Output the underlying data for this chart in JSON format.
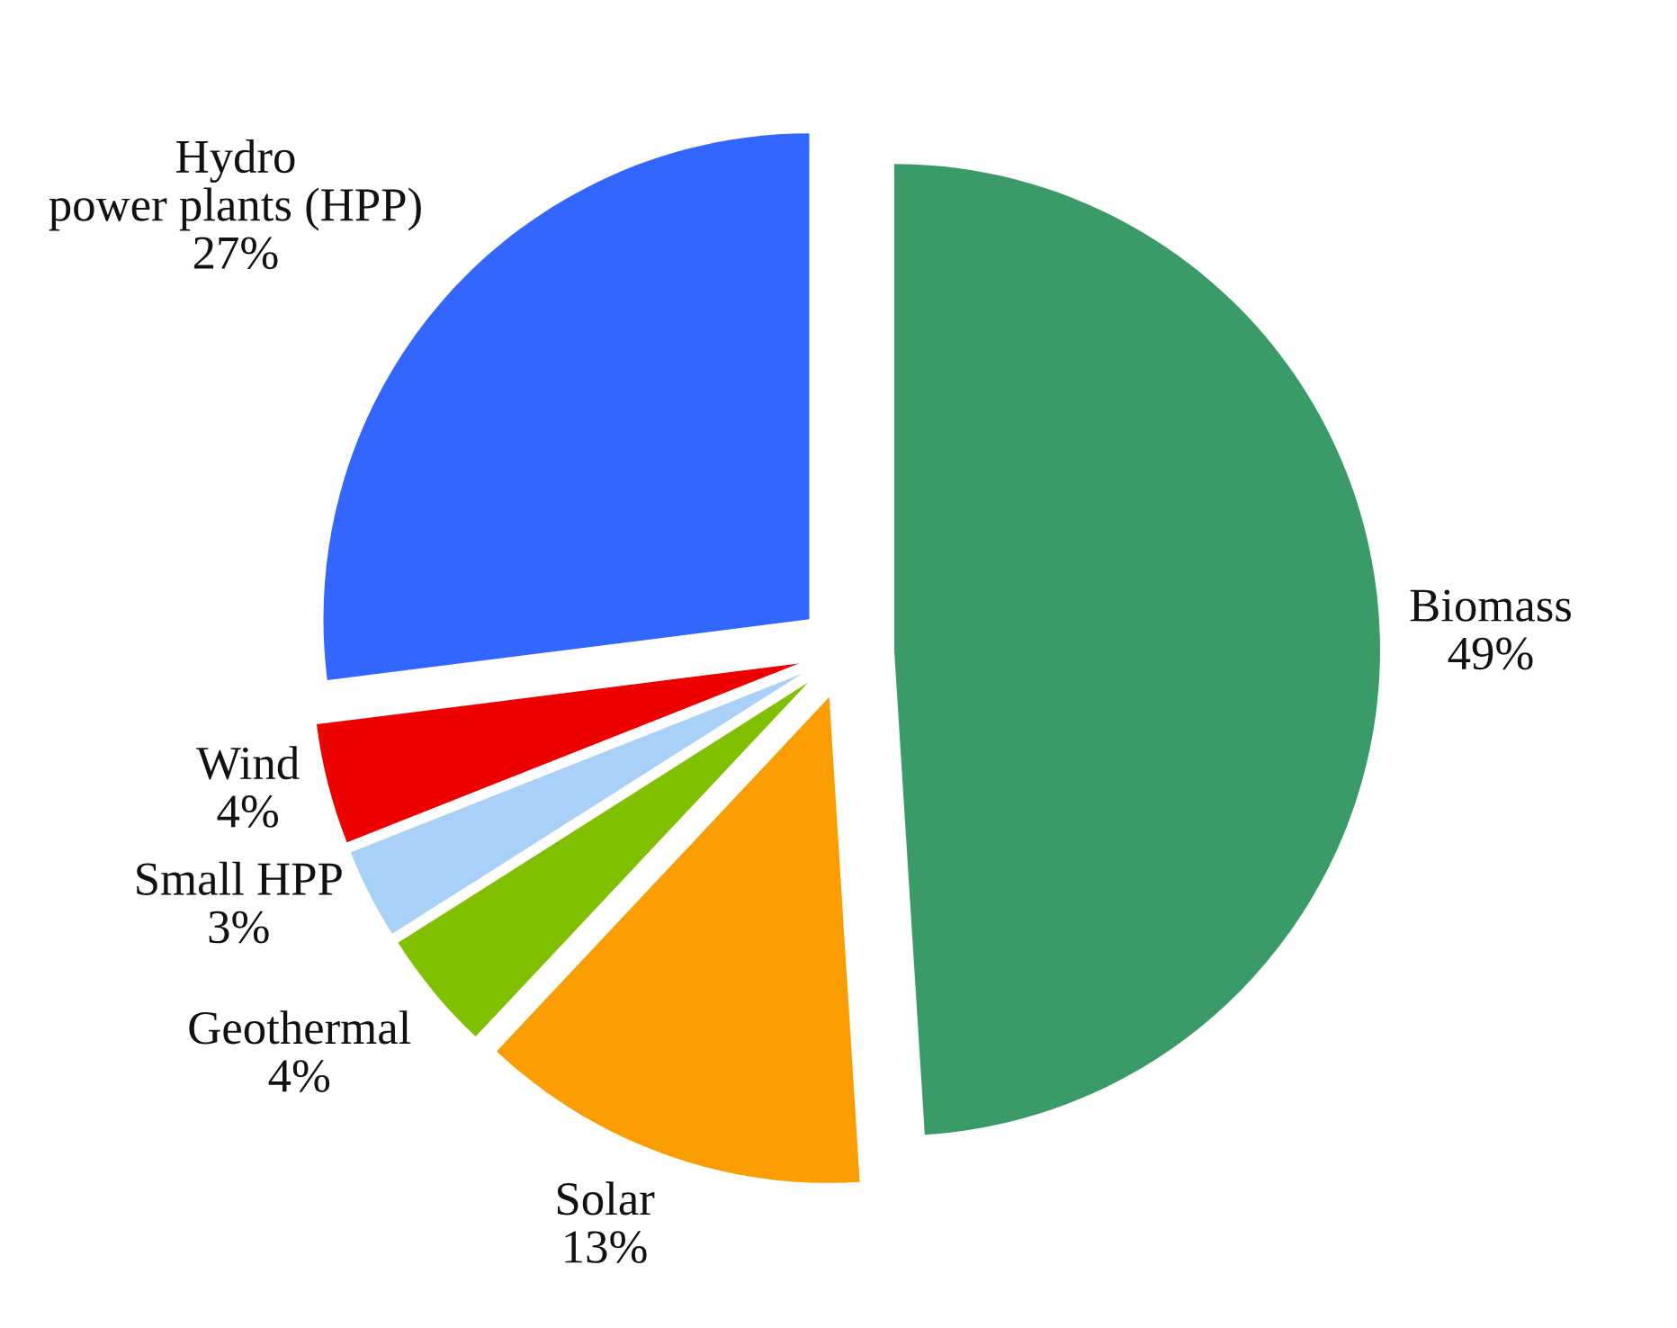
{
  "chart_data": {
    "type": "pie",
    "categories": [
      "Biomass",
      "Solar",
      "Geothermal",
      "Small HPP",
      "Wind",
      "Hydro\npower plants (HPP)"
    ],
    "values": [
      49,
      13,
      4,
      3,
      4,
      27
    ],
    "value_labels": [
      "49%",
      "13%",
      "4%",
      "3%",
      "4%",
      "27%"
    ],
    "colors": [
      "#3a9a68",
      "#f99d00",
      "#80c000",
      "#a9d1f7",
      "#ee0000",
      "#3366ff"
    ]
  }
}
